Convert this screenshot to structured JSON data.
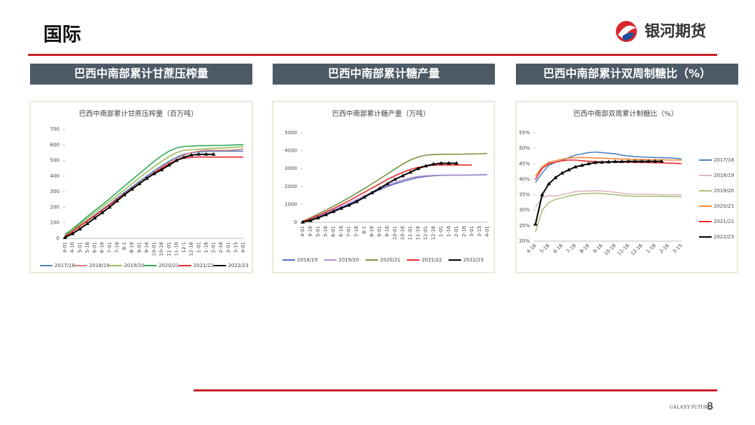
{
  "header": {
    "title": "国际",
    "logo": "银河期货"
  },
  "panel_titles": [
    "巴西中南部累计甘蔗压榨量",
    "巴西中南部累计糖产量",
    "巴西中南部累计双周制糖比（%）"
  ],
  "footer": {
    "brand": "GALAXY FUTURES",
    "page": "8"
  },
  "chart_data": [
    {
      "type": "line",
      "title": "巴西中南部累计甘蔗压榨量（百万吨）",
      "legend": "bottom",
      "categories": [
        "4-01",
        "4-16",
        "5-01",
        "5-16",
        "6-01",
        "6-16",
        "7-01",
        "7-16",
        "8-1",
        "8-16",
        "9-01",
        "9-16",
        "10-01",
        "10-16",
        "11-01",
        "11-16",
        "12-1",
        "12-16",
        "1-01",
        "1-16",
        "2-01",
        "2-16",
        "3-01",
        "3-15",
        "4-01"
      ],
      "ylim": [
        0,
        700
      ],
      "yticks": [
        0,
        100,
        200,
        300,
        400,
        500,
        600,
        700
      ],
      "series": [
        {
          "name": "2017/18",
          "color": "#4f81bd",
          "values": [
            15,
            45,
            80,
            115,
            150,
            185,
            220,
            258,
            295,
            330,
            365,
            400,
            435,
            465,
            495,
            520,
            540,
            550,
            555,
            558,
            560,
            560,
            560,
            560,
            560
          ]
        },
        {
          "name": "2018/19",
          "color": "#d9807a",
          "values": [
            10,
            40,
            75,
            110,
            145,
            180,
            215,
            250,
            285,
            320,
            355,
            390,
            425,
            455,
            485,
            510,
            535,
            550,
            560,
            565,
            565,
            565,
            565,
            568,
            575
          ]
        },
        {
          "name": "2019/20",
          "color": "#9bbb59",
          "values": [
            20,
            55,
            90,
            128,
            165,
            200,
            238,
            275,
            312,
            350,
            388,
            425,
            460,
            495,
            525,
            550,
            565,
            570,
            572,
            575,
            578,
            580,
            582,
            585,
            590
          ]
        },
        {
          "name": "2020/21",
          "color": "#2eaa5a",
          "values": [
            25,
            60,
            100,
            140,
            178,
            215,
            255,
            295,
            335,
            375,
            415,
            455,
            495,
            530,
            560,
            580,
            590,
            592,
            595,
            595,
            596,
            597,
            598,
            600,
            602
          ]
        },
        {
          "name": "2021/22",
          "color": "#e8262a",
          "values": [
            15,
            45,
            80,
            112,
            145,
            180,
            215,
            250,
            285,
            320,
            352,
            385,
            418,
            450,
            478,
            500,
            515,
            520,
            522,
            522,
            522,
            522,
            522,
            522,
            522
          ]
        },
        {
          "name": "2022/23",
          "color": "#000000",
          "markers": true,
          "values": [
            5,
            30,
            60,
            95,
            130,
            165,
            200,
            240,
            280,
            315,
            350,
            385,
            415,
            440,
            470,
            500,
            520,
            535,
            540,
            540,
            540,
            null,
            null,
            null,
            null
          ]
        }
      ]
    },
    {
      "type": "line",
      "title": "巴西中南部累计糖产量（万吨）",
      "legend": "bottom",
      "categories": [
        "4-01",
        "4-16",
        "5-01",
        "5-16",
        "6-01",
        "6-16",
        "7-01",
        "7-16",
        "8-1",
        "8-16",
        "9-01",
        "9-16",
        "10-01",
        "10-16",
        "11-01",
        "11-16",
        "12-01",
        "12-16",
        "1-01",
        "1-16",
        "2-01",
        "2-16",
        "3-01",
        "3-15",
        "4-01"
      ],
      "ylim": [
        0,
        5000
      ],
      "yticks": [
        0,
        1000,
        2000,
        3000,
        4000,
        5000
      ],
      "series": [
        {
          "name": "2018/19",
          "color": "#4f6fbd",
          "values": [
            20,
            150,
            300,
            480,
            660,
            840,
            1020,
            1220,
            1420,
            1620,
            1820,
            2000,
            2150,
            2280,
            2400,
            2500,
            2560,
            2600,
            2620,
            2630,
            2630,
            2630,
            2640,
            2650,
            2660
          ]
        },
        {
          "name": "2019/20",
          "color": "#b18fd0",
          "values": [
            30,
            170,
            340,
            520,
            700,
            880,
            1060,
            1260,
            1470,
            1680,
            1880,
            2060,
            2220,
            2360,
            2480,
            2560,
            2600,
            2620,
            2630,
            2640,
            2640,
            2640,
            2650,
            2660,
            2670
          ]
        },
        {
          "name": "2020/21",
          "color": "#77933c",
          "values": [
            60,
            250,
            460,
            680,
            900,
            1130,
            1370,
            1620,
            1880,
            2150,
            2420,
            2700,
            2980,
            3250,
            3480,
            3650,
            3750,
            3780,
            3800,
            3800,
            3800,
            3810,
            3820,
            3830,
            3850
          ]
        },
        {
          "name": "2021/22",
          "color": "#e8262a",
          "values": [
            40,
            200,
            380,
            570,
            770,
            980,
            1200,
            1430,
            1670,
            1910,
            2150,
            2390,
            2600,
            2790,
            2950,
            3070,
            3150,
            3190,
            3200,
            3200,
            3200,
            3200,
            3200,
            null,
            null
          ]
        },
        {
          "name": "2022/23",
          "color": "#000000",
          "markers": true,
          "values": [
            10,
            100,
            250,
            420,
            600,
            780,
            950,
            1150,
            1400,
            1650,
            1900,
            2150,
            2400,
            2600,
            2800,
            3000,
            3150,
            3250,
            3300,
            3300,
            3300,
            null,
            null,
            null,
            null
          ]
        }
      ]
    },
    {
      "type": "line",
      "title": "巴西中南部双周累计制糖比（%）",
      "legend": "right",
      "categories": [
        "4-16",
        null,
        "5-16",
        null,
        "6-16",
        null,
        "7-16",
        null,
        "8-16",
        null,
        "9-16",
        null,
        "10-16",
        null,
        "11-16",
        null,
        "12-16",
        null,
        "1-16",
        null,
        "2-16",
        null,
        "3-15"
      ],
      "ylim": [
        20,
        55
      ],
      "yticks": [
        {
          "value": 20,
          "label": "20%"
        },
        {
          "value": 25,
          "label": "25%"
        },
        {
          "value": 30,
          "label": "30%"
        },
        {
          "value": 35,
          "label": "35%"
        },
        {
          "value": 40,
          "label": "40%"
        },
        {
          "value": 45,
          "label": "45%"
        },
        {
          "value": 50,
          "label": "50%"
        },
        {
          "value": 55,
          "label": "55%"
        }
      ],
      "series": [
        {
          "name": "2017/18",
          "color": "#4f81bd",
          "values": [
            39,
            42,
            44.5,
            45.5,
            46,
            47,
            47.8,
            48.2,
            48.6,
            48.8,
            48.6,
            48.4,
            48.2,
            47.8,
            47.5,
            47.3,
            47.2,
            47.1,
            47,
            47,
            46.9,
            46.8,
            46.5
          ]
        },
        {
          "name": "2018/19",
          "color": "#dcb8b8",
          "values": [
            31,
            34,
            34.8,
            34.5,
            35,
            35.5,
            36,
            36.2,
            36.2,
            36.3,
            36.2,
            36,
            35.8,
            35.5,
            35.3,
            35.2,
            35.2,
            35.1,
            35.1,
            35,
            35,
            35,
            35
          ]
        },
        {
          "name": "2019/20",
          "color": "#a8c07a",
          "values": [
            23,
            30,
            32.5,
            33.5,
            34,
            34.6,
            35,
            35.3,
            35.4,
            35.5,
            35.4,
            35.2,
            35,
            34.8,
            34.6,
            34.5,
            34.5,
            34.5,
            34.5,
            34.5,
            34.4,
            34.4,
            34.3
          ]
        },
        {
          "name": "2020/21",
          "color": "#f0883a",
          "values": [
            41,
            44,
            45.5,
            46,
            46.5,
            46.8,
            47,
            47,
            47,
            46.9,
            46.8,
            46.7,
            46.6,
            46.5,
            46.5,
            46.4,
            46.4,
            46.3,
            46.3,
            46.3,
            46.2,
            46.2,
            46.2
          ]
        },
        {
          "name": "2021/22",
          "color": "#e8262a",
          "values": [
            40,
            43.5,
            45,
            45.5,
            46,
            46.2,
            46.2,
            46,
            45.8,
            45.7,
            45.6,
            45.6,
            45.5,
            45.5,
            45.5,
            45.4,
            45.4,
            45.4,
            45.3,
            45.3,
            45.2,
            45.2,
            45
          ]
        },
        {
          "name": "2022/23",
          "color": "#000000",
          "markers": true,
          "values": [
            25.5,
            35,
            38.5,
            40.5,
            42,
            43,
            44,
            44.5,
            45,
            45.4,
            45.5,
            45.6,
            45.7,
            45.7,
            45.8,
            45.8,
            45.8,
            45.8,
            45.8,
            45.8,
            null,
            null,
            null
          ]
        }
      ]
    }
  ]
}
